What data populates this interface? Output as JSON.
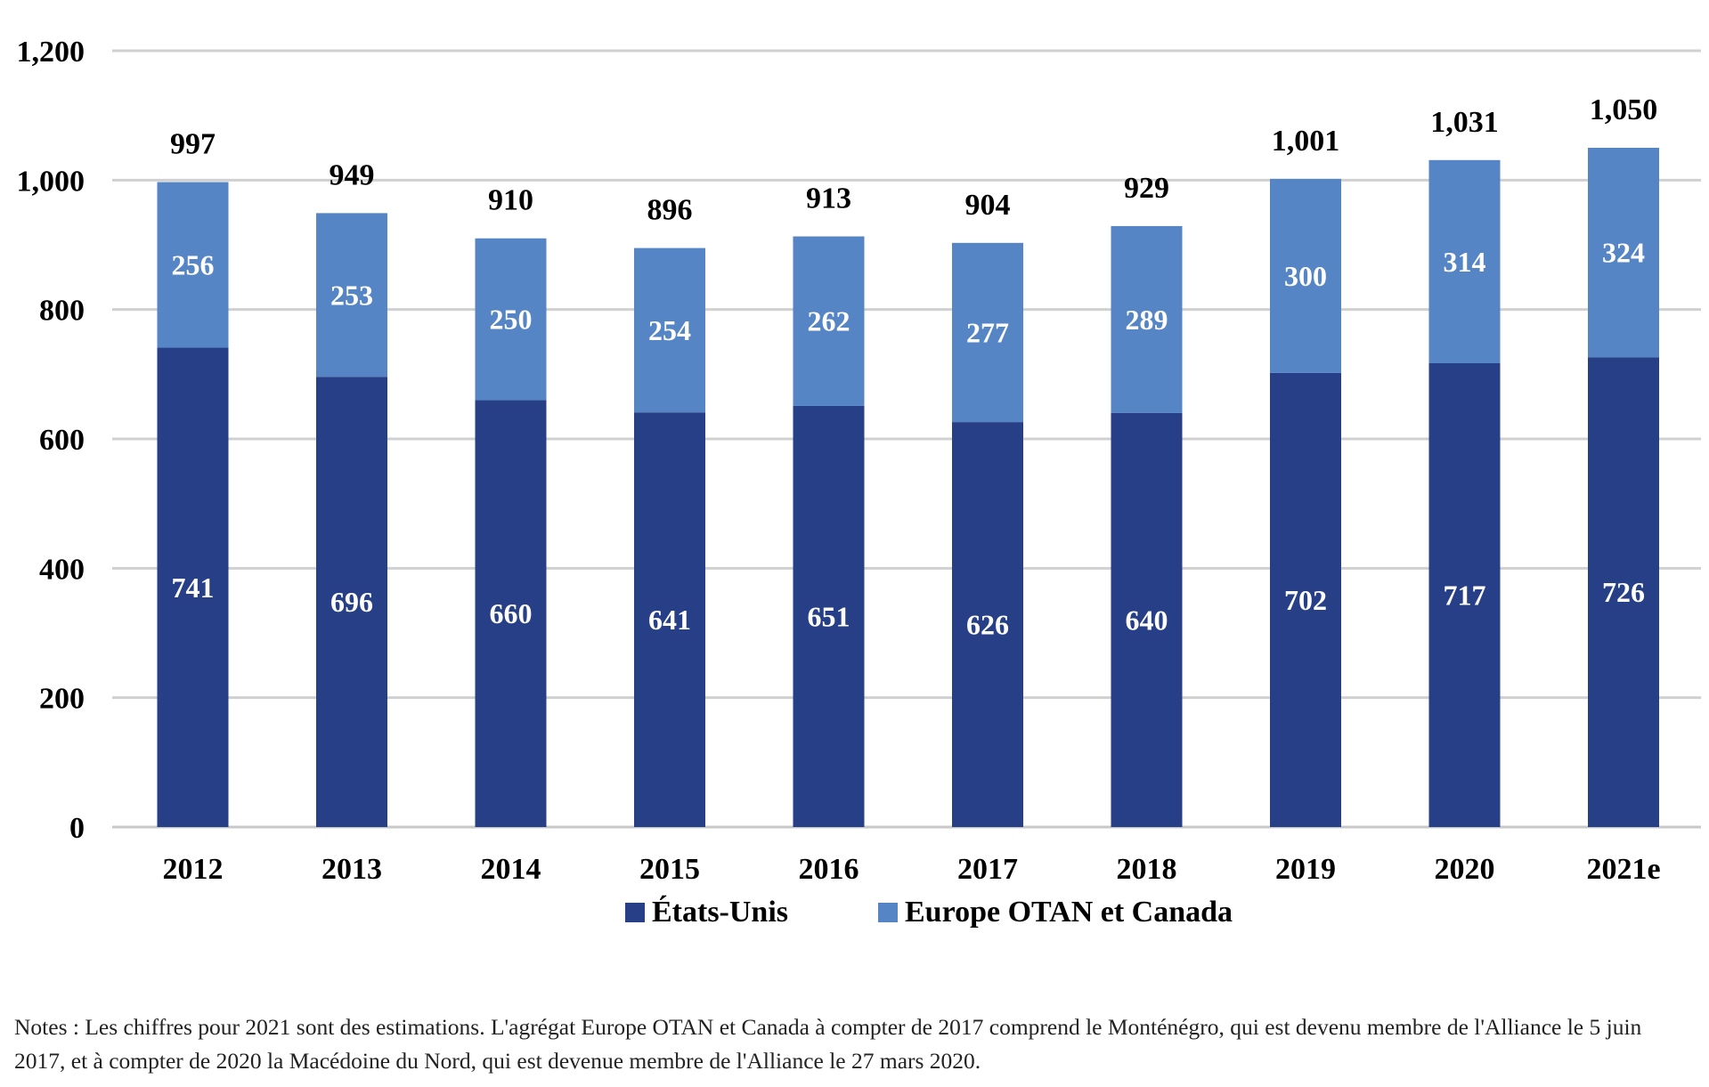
{
  "chart_data": {
    "type": "bar",
    "stacked": true,
    "categories": [
      "2012",
      "2013",
      "2014",
      "2015",
      "2016",
      "2017",
      "2018",
      "2019",
      "2020",
      "2021e"
    ],
    "series": [
      {
        "name": "États-Unis",
        "color": "#263f87",
        "values": [
          741,
          696,
          660,
          641,
          651,
          626,
          640,
          702,
          717,
          726
        ]
      },
      {
        "name": "Europe OTAN et Canada",
        "color": "#5585c5",
        "values": [
          256,
          253,
          250,
          254,
          262,
          277,
          289,
          300,
          314,
          324
        ]
      }
    ],
    "totals": [
      "997",
      "949",
      "910",
      "896",
      "913",
      "904",
      "929",
      "1,001",
      "1,031",
      "1,050"
    ],
    "ylim": [
      0,
      1200
    ],
    "yticks": [
      "0",
      "200",
      "400",
      "600",
      "800",
      "1,000",
      "1,200"
    ],
    "grid": true,
    "legend_position": "bottom",
    "title": "",
    "xlabel": "",
    "ylabel": ""
  },
  "notes": "Notes : Les chiffres pour 2021 sont des estimations. L'agrégat Europe OTAN et Canada à compter de 2017 comprend le Monténégro, qui est devenu membre de l'Alliance le 5 juin 2017, et à compter de 2020 la Macédoine du Nord, qui est devenue membre de l'Alliance le 27 mars 2020."
}
